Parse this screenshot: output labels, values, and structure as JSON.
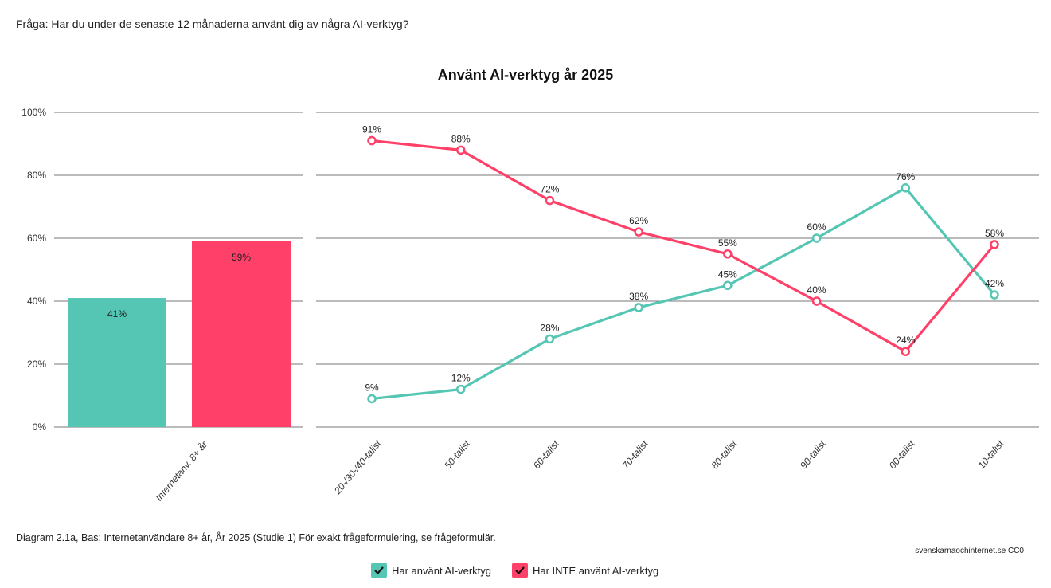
{
  "question": "Fråga: Har du under de senaste 12 månaderna använt dig av några AI-verktyg?",
  "footnote": "Diagram 2.1a, Bas: Internetanvändare 8+ år, År 2025 (Studie 1)  För exakt frågeformulering, se frågeformulär.",
  "source": "svenskarnaochinternet.se CC0",
  "colors": {
    "used": "#55C6B4",
    "not_used": "#FF4068"
  },
  "legend": [
    {
      "label": "Har använt AI-verktyg",
      "color": "#55C6B4",
      "icon": "check-icon"
    },
    {
      "label": "Har INTE använt AI-verktyg",
      "color": "#FF4068",
      "icon": "check-icon"
    }
  ],
  "chart_data": [
    {
      "type": "bar",
      "title": "Använt AI-verktyg år 2025",
      "categories": [
        "Internetanv. 8+ år"
      ],
      "series": [
        {
          "name": "Har använt AI-verktyg",
          "values": [
            41
          ]
        },
        {
          "name": "Har INTE använt AI-verktyg",
          "values": [
            59
          ]
        }
      ],
      "data_labels": [
        "41%",
        "59%"
      ],
      "ylim": [
        0,
        100
      ],
      "yticks": [
        "0%",
        "20%",
        "40%",
        "60%",
        "80%",
        "100%"
      ],
      "grid": true
    },
    {
      "type": "line",
      "title": "Använt AI-verktyg år 2025",
      "categories": [
        "20-/30-/40-talist",
        "50-talist",
        "60-talist",
        "70-talist",
        "80-talist",
        "90-talist",
        "00-talist",
        "10-talist"
      ],
      "series": [
        {
          "name": "Har använt AI-verktyg",
          "values": [
            9,
            12,
            28,
            38,
            45,
            60,
            76,
            42
          ]
        },
        {
          "name": "Har INTE använt AI-verktyg",
          "values": [
            91,
            88,
            72,
            62,
            55,
            40,
            24,
            58
          ]
        }
      ],
      "ylim": [
        0,
        100
      ],
      "grid": true,
      "legend": "bottom"
    }
  ]
}
